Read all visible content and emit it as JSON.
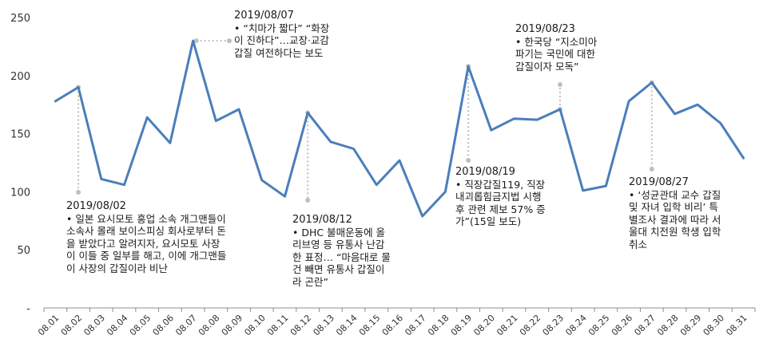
{
  "chart_data": {
    "type": "line",
    "title": "",
    "xlabel": "",
    "ylabel": "",
    "ylim": [
      0,
      250
    ],
    "yticks": [
      {
        "value": 250,
        "label": "250"
      },
      {
        "value": 200,
        "label": "200"
      },
      {
        "value": 150,
        "label": "150"
      },
      {
        "value": 100,
        "label": "100"
      },
      {
        "value": 50,
        "label": "50"
      },
      {
        "value": 0,
        "label": "-"
      }
    ],
    "categories": [
      "08.01",
      "08.02",
      "08.03",
      "08.04",
      "08.05",
      "08.06",
      "08.07",
      "08.08",
      "08.09",
      "08.10",
      "08.11",
      "08.12",
      "08.13",
      "08.14",
      "08.15",
      "08.16",
      "08.17",
      "08.18",
      "08.19",
      "08.20",
      "08.21",
      "08.22",
      "08.23",
      "08.24",
      "08.25",
      "08.26",
      "08.27",
      "08.28",
      "08.29",
      "08.30",
      "08.31"
    ],
    "series": [
      {
        "name": "",
        "color": "#4a7ebb",
        "values": [
          178,
          190,
          111,
          106,
          164,
          142,
          230,
          161,
          171,
          110,
          96,
          168,
          143,
          137,
          106,
          127,
          79,
          100,
          208,
          153,
          163,
          162,
          171,
          101,
          105,
          178,
          194,
          167,
          175,
          159,
          129
        ]
      }
    ],
    "grid": false,
    "legend": "none",
    "annotations": [
      {
        "date": "2019/08/02",
        "text": "• 일본 요시모토 흥업 소속 개그맨들이\n소속사 몰래 보이스피싱 회사로부터 돈\n을 받았다고 알려지자, 요시모토 사장\n이 이들 중 일부를 해고, 이에 개그맨들\n이 사장의 갑질이라 비난"
      },
      {
        "date": "2019/08/07",
        "text": "• “치마가 짧다” “화장\n이 진하다”…교장·교감\n갑질 여전하다는 보도"
      },
      {
        "date": "2019/08/12",
        "text": "• DHC 불매운동에 올\n리브영 등 유통사 난감\n한 표정… “마음대로 물\n건 빼면 유통사 갑질이\n라 곤란”"
      },
      {
        "date": "2019/08/19",
        "text": "• 직장갑질119, 직장\n내괴롭힘금지법 시행\n후 관련 제보 57% 증\n가”(15일 보도)"
      },
      {
        "date": "2019/08/23",
        "text": "• 한국당 “지소미아\n파기는 국민에 대한\n갑질이자 모독”"
      },
      {
        "date": "2019/08/27",
        "text": "• ‘성균관대 교수 갑질\n및 자녀 입학 비리’ 특\n별조사 결과에 따라 서\n울대 치전원 학생 입학\n취소"
      }
    ],
    "connector_color": "#bfbfbf"
  }
}
